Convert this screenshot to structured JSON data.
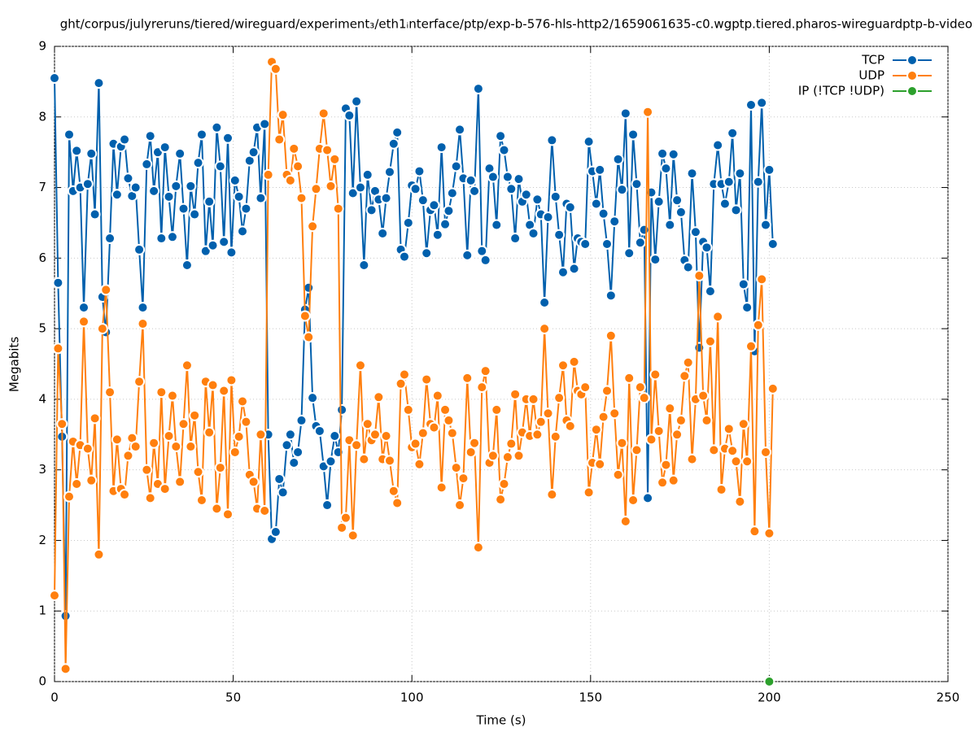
{
  "chart_data": {
    "type": "line",
    "title": "ght/corpus/julyreruns/tiered/wireguard/experiment₃/eth1ᵢnterface/ptp/exp-b-576-hls-http2/1659061635-c0.wgptp.tiered.pharos-wireguardptp-b-video",
    "x_label": "Time (s)",
    "y_label": "Megabits",
    "x": [
      0,
      1.0,
      2.1,
      3.1,
      4.1,
      5.2,
      6.2,
      7.2,
      8.2,
      9.3,
      10.3,
      11.3,
      12.4,
      13.4,
      14.4,
      15.5,
      16.5,
      17.5,
      18.6,
      19.6,
      20.6,
      21.7,
      22.7,
      23.7,
      24.7,
      25.8,
      26.8,
      27.8,
      28.9,
      29.9,
      30.9,
      32.0,
      33.0,
      34.0,
      35.1,
      36.1,
      37.1,
      38.1,
      39.2,
      40.2,
      41.2,
      42.3,
      43.3,
      44.3,
      45.4,
      46.4,
      47.4,
      48.5,
      49.5,
      50.5,
      51.6,
      52.6,
      53.6,
      54.6,
      55.7,
      56.7,
      57.7,
      58.8,
      59.8,
      60.8,
      61.9,
      62.9,
      63.9,
      65.0,
      66.0,
      67.0,
      68.1,
      69.1,
      70.1,
      71.1,
      72.2,
      73.2,
      74.2,
      75.3,
      76.3,
      77.3,
      78.4,
      79.4,
      80.4,
      81.5,
      82.5,
      83.5,
      84.5,
      85.6,
      86.6,
      87.6,
      88.7,
      89.7,
      90.7,
      91.8,
      92.8,
      93.8,
      94.9,
      95.9,
      96.9,
      97.9,
      99.0,
      100.0,
      101.0,
      102.1,
      103.1,
      104.1,
      105.2,
      106.2,
      107.2,
      108.3,
      109.3,
      110.3,
      111.3,
      112.4,
      113.4,
      114.4,
      115.5,
      116.5,
      117.5,
      118.6,
      119.6,
      120.6,
      121.7,
      122.7,
      123.7,
      124.8,
      125.8,
      126.8,
      127.8,
      128.9,
      129.9,
      130.9,
      132.0,
      133.0,
      134.0,
      135.1,
      136.1,
      137.1,
      138.1,
      139.2,
      140.2,
      141.2,
      142.3,
      143.3,
      144.3,
      145.4,
      146.4,
      147.4,
      148.5,
      149.5,
      150.5,
      151.6,
      152.6,
      153.6,
      154.6,
      155.7,
      156.7,
      157.7,
      158.8,
      159.8,
      160.8,
      161.9,
      162.9,
      163.9,
      165.0,
      166.0,
      167.0,
      168.1,
      169.1,
      170.1,
      171.1,
      172.2,
      173.2,
      174.2,
      175.3,
      176.3,
      177.3,
      178.4,
      179.4,
      180.4,
      181.5,
      182.5,
      183.5,
      184.5,
      185.6,
      186.6,
      187.6,
      188.7,
      189.7,
      190.7,
      191.8,
      192.8,
      193.8,
      194.9,
      195.9,
      196.9,
      197.9,
      199.0,
      200.0,
      201.0
    ],
    "series": [
      {
        "name": "TCP",
        "color": "#0060ad",
        "values": [
          8.55,
          5.65,
          3.47,
          0.93,
          7.75,
          6.95,
          7.52,
          7.0,
          5.3,
          7.05,
          7.48,
          6.62,
          8.48,
          5.45,
          4.95,
          6.28,
          7.62,
          6.9,
          7.58,
          7.68,
          7.13,
          6.88,
          7.0,
          6.12,
          5.3,
          7.33,
          7.73,
          6.95,
          7.5,
          6.28,
          7.57,
          6.87,
          6.3,
          7.02,
          7.48,
          6.7,
          5.9,
          7.02,
          6.62,
          7.35,
          7.75,
          6.1,
          6.8,
          6.18,
          7.85,
          7.3,
          6.23,
          7.7,
          6.08,
          7.1,
          6.87,
          6.38,
          6.7,
          7.38,
          7.5,
          7.85,
          6.85,
          7.9,
          3.5,
          2.02,
          2.12,
          2.87,
          2.68,
          3.35,
          3.5,
          3.1,
          3.25,
          3.7,
          5.27,
          5.58,
          4.02,
          3.62,
          3.55,
          3.05,
          2.5,
          3.12,
          3.48,
          3.25,
          3.85,
          8.12,
          8.02,
          6.92,
          8.22,
          7.0,
          5.9,
          7.18,
          6.68,
          6.95,
          6.83,
          6.35,
          6.85,
          7.22,
          7.62,
          7.78,
          6.12,
          6.02,
          6.5,
          7.03,
          6.98,
          7.23,
          6.82,
          6.07,
          6.68,
          6.75,
          6.33,
          7.57,
          6.48,
          6.67,
          6.92,
          7.3,
          7.82,
          7.13,
          6.04,
          7.1,
          6.95,
          8.4,
          6.1,
          5.97,
          7.27,
          7.15,
          6.47,
          7.73,
          7.53,
          7.15,
          6.98,
          6.28,
          7.12,
          6.8,
          6.9,
          6.47,
          6.35,
          6.83,
          6.62,
          5.37,
          6.58,
          7.67,
          6.87,
          6.33,
          5.8,
          6.77,
          6.72,
          5.85,
          6.28,
          6.23,
          6.2,
          7.65,
          7.23,
          6.77,
          7.25,
          6.63,
          6.2,
          5.47,
          6.52,
          7.4,
          6.97,
          8.05,
          6.07,
          7.75,
          7.05,
          6.22,
          6.4,
          2.6,
          6.93,
          5.98,
          6.8,
          7.48,
          7.27,
          6.47,
          7.47,
          6.82,
          6.65,
          5.97,
          5.87,
          7.2,
          6.37,
          4.73,
          6.23,
          6.15,
          5.53,
          7.05,
          7.6,
          7.05,
          6.77,
          7.08,
          7.77,
          6.68,
          7.2,
          5.63,
          5.3,
          8.17,
          4.68,
          7.08,
          8.2,
          6.47,
          7.25,
          6.2
        ]
      },
      {
        "name": "UDP",
        "color": "#ff7f0e",
        "values": [
          1.22,
          4.72,
          3.65,
          0.18,
          2.62,
          3.4,
          2.8,
          3.35,
          5.1,
          3.3,
          2.85,
          3.73,
          1.8,
          5.0,
          5.55,
          4.1,
          2.7,
          3.43,
          2.73,
          2.65,
          3.2,
          3.45,
          3.33,
          4.25,
          5.07,
          3.0,
          2.6,
          3.38,
          2.8,
          4.1,
          2.73,
          3.48,
          4.05,
          3.33,
          2.83,
          3.65,
          4.48,
          3.33,
          3.77,
          2.97,
          2.57,
          4.25,
          3.53,
          4.2,
          2.45,
          3.03,
          4.12,
          2.37,
          4.27,
          3.25,
          3.47,
          3.97,
          3.68,
          2.93,
          2.83,
          2.45,
          3.5,
          2.42,
          7.18,
          8.78,
          8.68,
          7.68,
          8.03,
          7.18,
          7.1,
          7.55,
          7.3,
          6.85,
          5.18,
          4.88,
          6.45,
          6.98,
          7.55,
          8.05,
          7.53,
          7.02,
          7.4,
          6.7,
          2.18,
          2.32,
          3.42,
          2.07,
          3.35,
          4.48,
          3.15,
          3.65,
          3.42,
          3.5,
          4.03,
          3.15,
          3.48,
          3.13,
          2.7,
          2.53,
          4.22,
          4.35,
          3.85,
          3.32,
          3.37,
          3.08,
          3.52,
          4.28,
          3.65,
          3.6,
          4.05,
          2.75,
          3.85,
          3.7,
          3.52,
          3.03,
          2.5,
          2.88,
          4.3,
          3.25,
          3.38,
          1.9,
          4.17,
          4.4,
          3.1,
          3.2,
          3.85,
          2.58,
          2.8,
          3.18,
          3.37,
          4.07,
          3.2,
          3.53,
          4.0,
          3.48,
          4.0,
          3.5,
          3.68,
          5.0,
          3.8,
          2.65,
          3.47,
          4.02,
          4.48,
          3.7,
          3.62,
          4.53,
          4.12,
          4.07,
          4.17,
          2.68,
          3.1,
          3.57,
          3.08,
          3.75,
          4.12,
          4.9,
          3.8,
          2.93,
          3.38,
          2.27,
          4.3,
          2.57,
          3.28,
          4.17,
          4.02,
          8.07,
          3.43,
          4.35,
          3.55,
          2.82,
          3.07,
          3.87,
          2.85,
          3.5,
          3.7,
          4.33,
          4.52,
          3.15,
          4.0,
          5.75,
          4.05,
          3.7,
          4.82,
          3.28,
          5.17,
          2.72,
          3.3,
          3.58,
          3.27,
          3.12,
          2.55,
          3.65,
          3.12,
          4.75,
          2.13,
          5.05,
          5.7,
          3.25,
          2.1,
          4.15
        ]
      },
      {
        "name": "IP (!TCP  !UDP)",
        "color": "#2ca02c",
        "x": [
          200
        ],
        "values": [
          0
        ]
      }
    ],
    "xlim": [
      0,
      250
    ],
    "xticks": [
      0,
      50,
      100,
      150,
      200,
      250
    ],
    "ylim": [
      0,
      9
    ],
    "yticks": [
      0,
      1,
      2,
      3,
      4,
      5,
      6,
      7,
      8,
      9
    ],
    "grid": true,
    "legend": "top-right"
  }
}
